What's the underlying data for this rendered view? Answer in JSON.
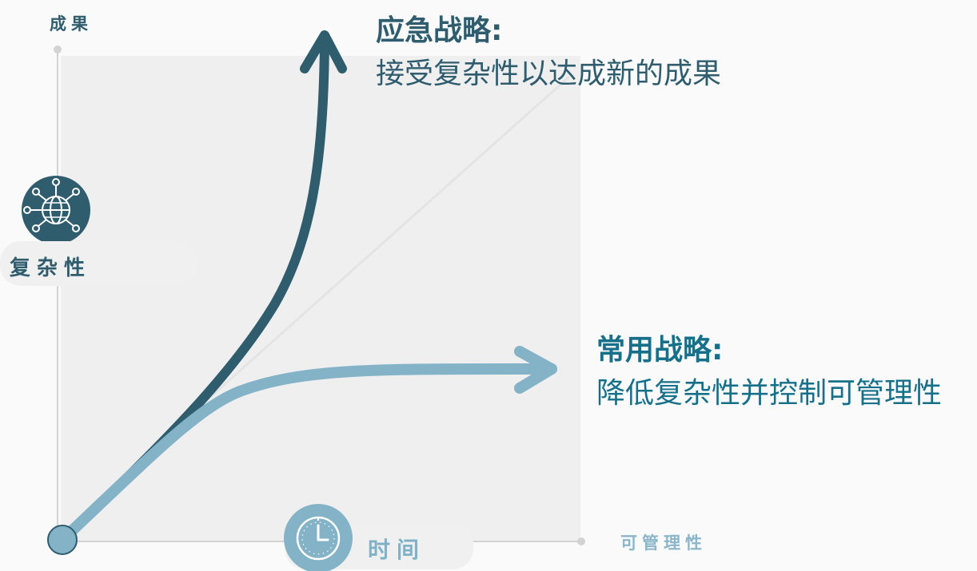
{
  "axes": {
    "y_label": "成果",
    "x_label": "可管理性"
  },
  "dimensions": {
    "complexity_label": "复杂性",
    "time_label": "时间"
  },
  "strategies": {
    "emergent": {
      "title": "应急战略:",
      "description": "接受复杂性以达成新的成果"
    },
    "common": {
      "title": "常用战略:",
      "description": "降低复杂性并控制可管理性"
    }
  },
  "icons": {
    "complexity": "network-globe-icon",
    "time": "clock-icon"
  },
  "colors": {
    "dark_teal": "#2f5d6e",
    "light_blue": "#84b3c8",
    "text_teal": "#17708a",
    "plot_background": "#f0eff0",
    "axis_gray": "#d3d3d3"
  }
}
